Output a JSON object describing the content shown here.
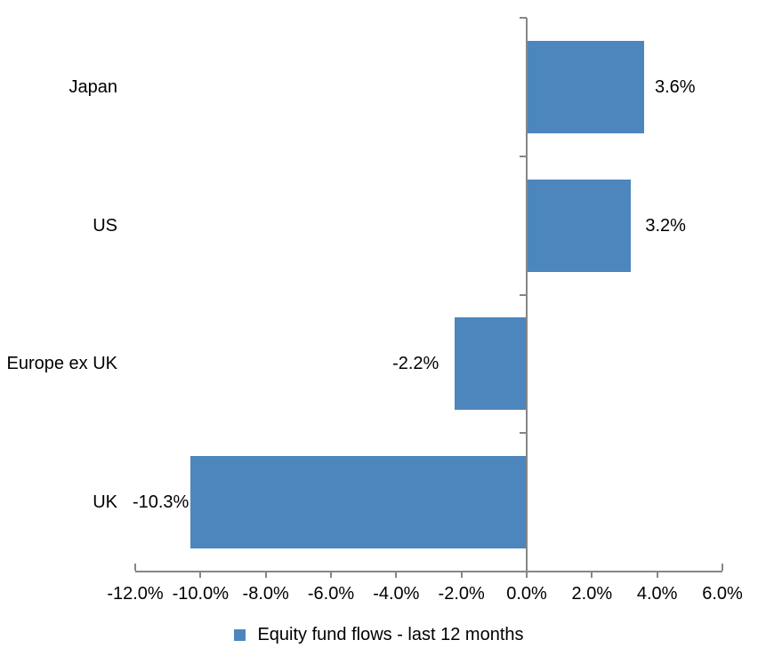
{
  "chart_data": {
    "type": "bar",
    "orientation": "horizontal",
    "title": "",
    "categories": [
      "Japan",
      "US",
      "Europe ex UK",
      "UK"
    ],
    "series": [
      {
        "name": "Equity fund flows - last 12 months",
        "values": [
          3.6,
          3.2,
          -2.2,
          -10.3
        ],
        "data_labels": [
          "3.6%",
          "3.2%",
          "-2.2%",
          "-10.3%"
        ]
      }
    ],
    "xlim": [
      -12,
      6
    ],
    "x_tick_step": 2,
    "x_tick_labels": [
      "-12.0%",
      "-10.0%",
      "-8.0%",
      "-6.0%",
      "-4.0%",
      "-2.0%",
      "0.0%",
      "2.0%",
      "4.0%",
      "6.0%"
    ],
    "grid": false,
    "legend_position": "bottom",
    "colors": {
      "bar": "#4D86BC",
      "axis": "#868686",
      "text": "#000000",
      "background": "#FFFFFF"
    }
  }
}
